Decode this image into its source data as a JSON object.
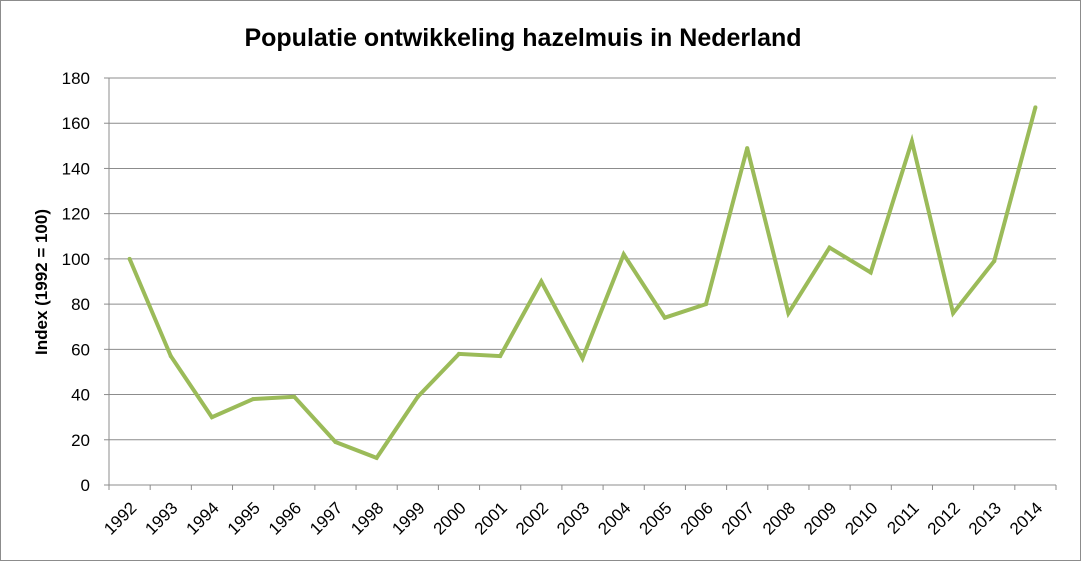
{
  "chart_data": {
    "type": "line",
    "title": "Populatie ontwikkeling hazelmuis in Nederland",
    "xlabel": "",
    "ylabel": "Index (1992 = 100)",
    "ylim": [
      0,
      180
    ],
    "yticks": [
      "0",
      "20",
      "40",
      "60",
      "80",
      "100",
      "120",
      "140",
      "160",
      "180"
    ],
    "grid": true,
    "categories": [
      "1992",
      "1993",
      "1994",
      "1995",
      "1996",
      "1997",
      "1998",
      "1999",
      "2000",
      "2001",
      "2002",
      "2003",
      "2004",
      "2005",
      "2006",
      "2007",
      "2008",
      "2009",
      "2010",
      "2011",
      "2012",
      "2013",
      "2014"
    ],
    "series": [
      {
        "color": "#9bbb59",
        "values": [
          100,
          57,
          30,
          38,
          39,
          19,
          12,
          39,
          58,
          57,
          90,
          56,
          102,
          74,
          80,
          149,
          76,
          105,
          94,
          152,
          76,
          99,
          167
        ]
      }
    ]
  }
}
